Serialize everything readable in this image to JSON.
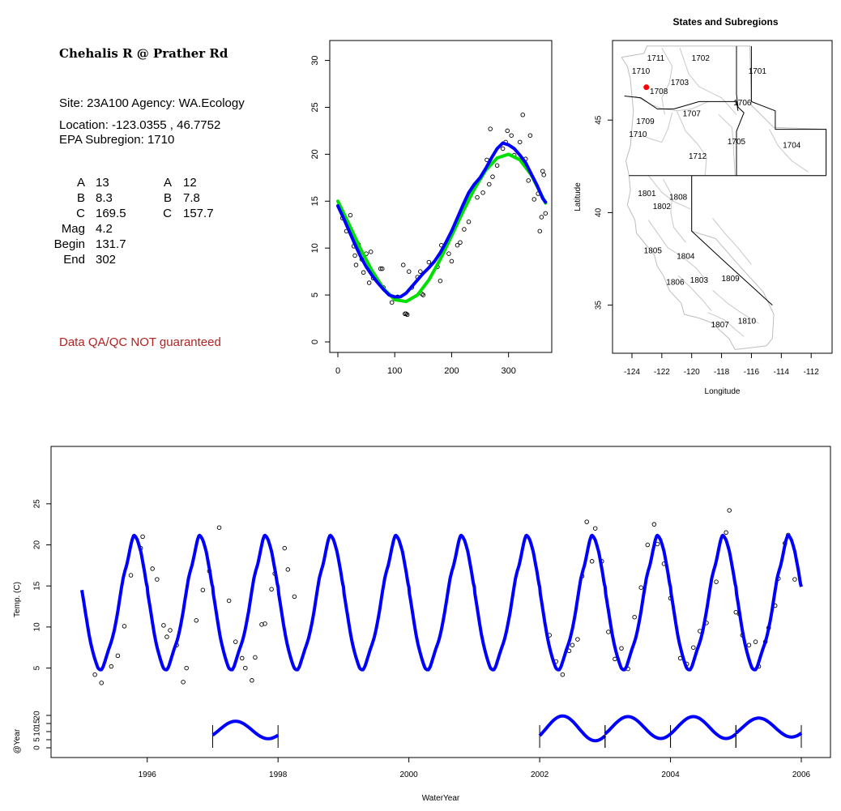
{
  "info": {
    "title": "Chehalis R @ Prather Rd",
    "site_line": "Site: 23A100     Agency: WA.Ecology",
    "location_line": "Location: -123.0355 , 46.7752",
    "subregion_line": "EPA Subregion: 1710",
    "params_left": [
      {
        "label": "A",
        "value": "13"
      },
      {
        "label": "B",
        "value": "8.3"
      },
      {
        "label": "C",
        "value": "169.5"
      },
      {
        "label": "Mag",
        "value": "4.2"
      },
      {
        "label": "Begin",
        "value": "131.7"
      },
      {
        "label": "End",
        "value": "302"
      }
    ],
    "params_right": [
      {
        "label": "A",
        "value": "12"
      },
      {
        "label": "B",
        "value": "7.8"
      },
      {
        "label": "C",
        "value": "157.7"
      }
    ],
    "warning": "Data QA/QC NOT guaranteed",
    "warning_color": "#b22222"
  },
  "colors": {
    "blue": "#0000ff",
    "green": "#00e000",
    "points": "#000000",
    "site_marker": "#ff0000"
  },
  "chart_data": [
    {
      "type": "scatter",
      "panel": "annual-cycle",
      "xlim": [
        0,
        366
      ],
      "ylim": [
        0,
        31
      ],
      "x_ticks": [
        0,
        100,
        200,
        300
      ],
      "y_ticks": [
        0,
        5,
        10,
        15,
        20,
        25,
        30
      ],
      "points": [
        [
          8,
          13.2
        ],
        [
          15,
          11.8
        ],
        [
          22,
          13.5
        ],
        [
          25,
          11.5
        ],
        [
          28,
          10.2
        ],
        [
          30,
          9.2
        ],
        [
          32,
          8.2
        ],
        [
          36,
          10.4
        ],
        [
          42,
          8.8
        ],
        [
          45,
          7.4
        ],
        [
          50,
          9.4
        ],
        [
          55,
          6.3
        ],
        [
          58,
          9.6
        ],
        [
          62,
          6.8
        ],
        [
          70,
          6.5
        ],
        [
          75,
          7.8
        ],
        [
          78,
          7.8
        ],
        [
          80,
          5.8
        ],
        [
          95,
          4.2
        ],
        [
          105,
          4.8
        ],
        [
          115,
          8.2
        ],
        [
          118,
          3.0
        ],
        [
          120,
          3.0
        ],
        [
          122,
          2.9
        ],
        [
          125,
          7.5
        ],
        [
          130,
          5.8
        ],
        [
          140,
          6.9
        ],
        [
          145,
          7.5
        ],
        [
          148,
          5.1
        ],
        [
          150,
          5.0
        ],
        [
          160,
          8.5
        ],
        [
          175,
          8.0
        ],
        [
          180,
          6.5
        ],
        [
          182,
          10.3
        ],
        [
          185,
          9.6
        ],
        [
          195,
          9.4
        ],
        [
          200,
          8.6
        ],
        [
          210,
          10.3
        ],
        [
          215,
          10.6
        ],
        [
          222,
          12.0
        ],
        [
          230,
          12.8
        ],
        [
          235,
          16.0
        ],
        [
          245,
          15.4
        ],
        [
          255,
          15.9
        ],
        [
          262,
          19.4
        ],
        [
          266,
          16.8
        ],
        [
          268,
          22.7
        ],
        [
          272,
          17.6
        ],
        [
          280,
          18.8
        ],
        [
          290,
          20.6
        ],
        [
          295,
          21.3
        ],
        [
          298,
          22.5
        ],
        [
          305,
          22.0
        ],
        [
          310,
          19.9
        ],
        [
          320,
          21.3
        ],
        [
          325,
          24.2
        ],
        [
          330,
          19.5
        ],
        [
          335,
          17.2
        ],
        [
          338,
          22.0
        ],
        [
          345,
          15.2
        ],
        [
          352,
          15.8
        ],
        [
          355,
          11.8
        ],
        [
          358,
          13.3
        ],
        [
          360,
          18.2
        ],
        [
          362,
          17.8
        ],
        [
          365,
          13.7
        ]
      ],
      "series": [
        {
          "color": "blue",
          "type": "curve",
          "x": [
            0,
            10,
            20,
            30,
            40,
            50,
            60,
            70,
            80,
            90,
            100,
            110,
            120,
            130,
            140,
            150,
            160,
            170,
            180,
            190,
            200,
            210,
            220,
            230,
            240,
            250,
            260,
            270,
            280,
            290,
            300,
            310,
            320,
            330,
            340,
            350,
            360,
            365
          ],
          "y": [
            14.5,
            13.2,
            11.8,
            10.4,
            9.1,
            8.0,
            7.1,
            6.3,
            5.6,
            5.0,
            4.8,
            4.8,
            5.2,
            5.9,
            6.6,
            7.3,
            7.9,
            8.6,
            9.5,
            10.6,
            11.8,
            13.2,
            14.6,
            15.9,
            16.8,
            17.5,
            18.5,
            19.6,
            20.6,
            21.2,
            21.0,
            20.6,
            19.9,
            19.1,
            17.9,
            16.7,
            15.3,
            14.9
          ]
        },
        {
          "color": "green",
          "type": "curve",
          "x": [
            0,
            20,
            40,
            60,
            80,
            100,
            120,
            140,
            160,
            180,
            200,
            220,
            240,
            260,
            280,
            300,
            320,
            340,
            360,
            365
          ],
          "y": [
            15.0,
            12.5,
            9.9,
            7.6,
            5.7,
            4.5,
            4.3,
            5.0,
            6.6,
            8.8,
            11.3,
            13.9,
            16.3,
            18.3,
            19.6,
            20.0,
            19.4,
            17.8,
            15.4,
            14.8
          ]
        }
      ]
    },
    {
      "type": "map",
      "panel": "subregion-map",
      "title": "States and Subregions",
      "xlabel": "Longitude",
      "ylabel": "Latitude",
      "xlim": [
        -125.3,
        -110.6
      ],
      "ylim": [
        32.4,
        49.3
      ],
      "x_ticks": [
        -124,
        -122,
        -120,
        -118,
        -116,
        -114,
        -112
      ],
      "y_ticks": [
        35,
        40,
        45
      ],
      "region_labels": [
        {
          "name": "1711",
          "lon": -122.4,
          "lat": 48.2
        },
        {
          "name": "1702",
          "lon": -119.4,
          "lat": 48.2
        },
        {
          "name": "1701",
          "lon": -115.6,
          "lat": 47.5
        },
        {
          "name": "1710",
          "lon": -123.4,
          "lat": 47.5
        },
        {
          "name": "1703",
          "lon": -120.8,
          "lat": 46.9
        },
        {
          "name": "1708",
          "lon": -122.2,
          "lat": 46.4
        },
        {
          "name": "1706",
          "lon": -116.6,
          "lat": 45.8
        },
        {
          "name": "1707",
          "lon": -120.0,
          "lat": 45.2
        },
        {
          "name": "1709",
          "lon": -123.1,
          "lat": 44.8
        },
        {
          "name": "1710",
          "lon": -123.6,
          "lat": 44.1
        },
        {
          "name": "1705",
          "lon": -117.0,
          "lat": 43.7
        },
        {
          "name": "1704",
          "lon": -113.3,
          "lat": 43.5
        },
        {
          "name": "1712",
          "lon": -119.6,
          "lat": 42.9
        },
        {
          "name": "1801",
          "lon": -123.0,
          "lat": 40.9
        },
        {
          "name": "1808",
          "lon": -120.9,
          "lat": 40.7
        },
        {
          "name": "1802",
          "lon": -122.0,
          "lat": 40.2
        },
        {
          "name": "1805",
          "lon": -122.6,
          "lat": 37.8
        },
        {
          "name": "1804",
          "lon": -120.4,
          "lat": 37.5
        },
        {
          "name": "1809",
          "lon": -117.4,
          "lat": 36.3
        },
        {
          "name": "1806",
          "lon": -121.1,
          "lat": 36.1
        },
        {
          "name": "1803",
          "lon": -119.5,
          "lat": 36.2
        },
        {
          "name": "1807",
          "lon": -118.1,
          "lat": 33.8
        },
        {
          "name": "1810",
          "lon": -116.3,
          "lat": 34.0
        }
      ],
      "site": {
        "lon": -123.0355,
        "lat": 46.7752
      }
    },
    {
      "type": "line",
      "panel": "timeseries",
      "xlabel": "WaterYear",
      "ylabel": "Temp. (C)",
      "ylabel2": "@Year",
      "xlim": [
        1994.5,
        2006.5
      ],
      "ylim": [
        2,
        31
      ],
      "x_ticks": [
        1996,
        1998,
        2000,
        2002,
        2004,
        2006
      ],
      "y_ticks": [
        5,
        10,
        15,
        20,
        25
      ],
      "y2_ticks": [
        0,
        5,
        10,
        15,
        20
      ],
      "model": {
        "start": 1995.0,
        "end": 2006.0
      },
      "points": [
        [
          1995.2,
          4.2
        ],
        [
          1995.3,
          3.2
        ],
        [
          1995.45,
          5.2
        ],
        [
          1995.55,
          6.5
        ],
        [
          1995.65,
          10.1
        ],
        [
          1995.75,
          16.3
        ],
        [
          1995.9,
          19.6
        ],
        [
          1995.93,
          21.0
        ],
        [
          1996.08,
          17.1
        ],
        [
          1996.15,
          15.8
        ],
        [
          1996.25,
          10.2
        ],
        [
          1996.3,
          8.8
        ],
        [
          1996.35,
          9.6
        ],
        [
          1996.45,
          7.8
        ],
        [
          1996.55,
          3.3
        ],
        [
          1996.6,
          5.0
        ],
        [
          1996.75,
          10.8
        ],
        [
          1996.85,
          14.5
        ],
        [
          1996.95,
          16.8
        ],
        [
          1997.1,
          22.1
        ],
        [
          1997.25,
          13.2
        ],
        [
          1997.35,
          8.2
        ],
        [
          1997.45,
          6.2
        ],
        [
          1997.5,
          5.0
        ],
        [
          1997.6,
          3.5
        ],
        [
          1997.65,
          6.3
        ],
        [
          1997.75,
          10.3
        ],
        [
          1997.8,
          10.4
        ],
        [
          1997.9,
          14.6
        ],
        [
          1997.95,
          16.5
        ],
        [
          1998.1,
          19.6
        ],
        [
          1998.15,
          17.0
        ],
        [
          1998.25,
          13.7
        ],
        [
          2002.15,
          9.0
        ],
        [
          2002.25,
          5.8
        ],
        [
          2002.35,
          4.2
        ],
        [
          2002.45,
          7.1
        ],
        [
          2002.5,
          7.8
        ],
        [
          2002.58,
          8.5
        ],
        [
          2002.65,
          16.2
        ],
        [
          2002.72,
          22.8
        ],
        [
          2002.8,
          18.0
        ],
        [
          2002.85,
          22.0
        ],
        [
          2002.95,
          18.0
        ],
        [
          2003.05,
          9.4
        ],
        [
          2003.15,
          6.1
        ],
        [
          2003.25,
          7.4
        ],
        [
          2003.35,
          4.9
        ],
        [
          2003.45,
          11.2
        ],
        [
          2003.55,
          14.8
        ],
        [
          2003.65,
          20.0
        ],
        [
          2003.75,
          22.5
        ],
        [
          2003.8,
          20.1
        ],
        [
          2003.9,
          17.7
        ],
        [
          2004.0,
          13.5
        ],
        [
          2004.15,
          6.2
        ],
        [
          2004.25,
          5.5
        ],
        [
          2004.35,
          7.5
        ],
        [
          2004.45,
          9.5
        ],
        [
          2004.55,
          10.5
        ],
        [
          2004.7,
          15.5
        ],
        [
          2004.85,
          21.5
        ],
        [
          2004.9,
          24.2
        ],
        [
          2005.0,
          11.8
        ],
        [
          2005.05,
          11.6
        ],
        [
          2005.1,
          9.0
        ],
        [
          2005.2,
          7.8
        ],
        [
          2005.3,
          8.2
        ],
        [
          2005.35,
          5.2
        ],
        [
          2005.45,
          8.2
        ],
        [
          2005.5,
          9.9
        ],
        [
          2005.6,
          12.6
        ],
        [
          2005.65,
          15.9
        ],
        [
          2005.75,
          20.2
        ],
        [
          2005.8,
          21.2
        ],
        [
          2005.9,
          15.8
        ]
      ],
      "year_series": [
        {
          "start": 1997.0,
          "end": 1998.0,
          "amp": 6,
          "base": 11
        },
        {
          "start": 2002.0,
          "end": 2003.0,
          "amp": 8.5,
          "base": 12
        },
        {
          "start": 2003.0,
          "end": 2004.0,
          "amp": 7.5,
          "base": 12.5
        },
        {
          "start": 2004.0,
          "end": 2005.0,
          "amp": 7.5,
          "base": 12.5
        },
        {
          "start": 2005.0,
          "end": 2006.0,
          "amp": 6.5,
          "base": 12.5
        }
      ]
    }
  ]
}
